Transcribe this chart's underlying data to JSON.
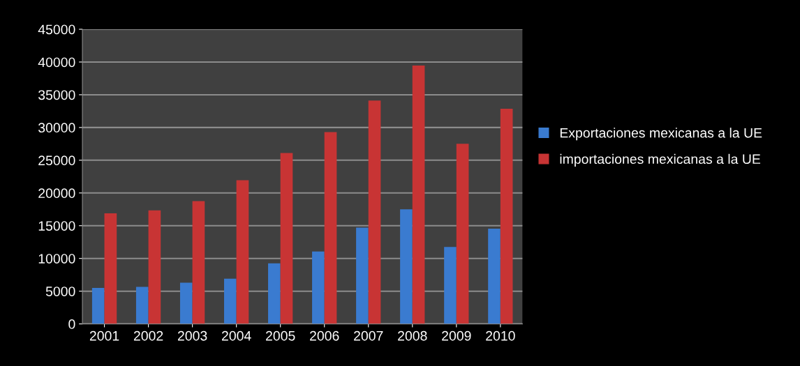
{
  "chart_data": {
    "type": "bar",
    "categories": [
      "2001",
      "2002",
      "2003",
      "2004",
      "2005",
      "2006",
      "2007",
      "2008",
      "2009",
      "2010"
    ],
    "series": [
      {
        "name": "Exportaciones mexicanas a la UE",
        "color": "#3a7bd0",
        "values": [
          5500,
          5650,
          6300,
          6900,
          9250,
          11050,
          14700,
          17500,
          11750,
          14550
        ]
      },
      {
        "name": "importaciones mexicanas a la UE",
        "color": "#c83434",
        "values": [
          16900,
          17350,
          18750,
          21950,
          26100,
          29300,
          34100,
          39450,
          27500,
          32850
        ]
      }
    ],
    "ylim": [
      0,
      45000
    ],
    "yticks": [
      0,
      5000,
      10000,
      15000,
      20000,
      25000,
      30000,
      35000,
      40000,
      45000
    ],
    "grid": "y",
    "legend": "right"
  }
}
